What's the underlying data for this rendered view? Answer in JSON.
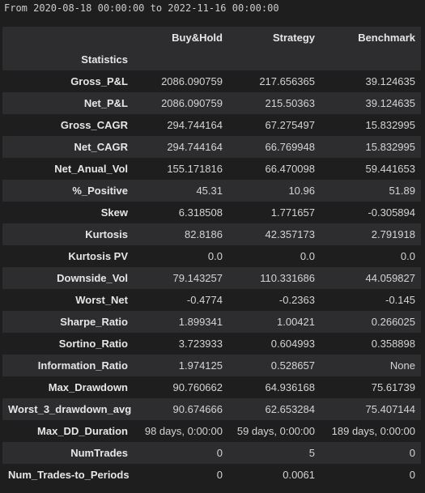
{
  "range_text": "From 2020-08-18 00:00:00 to 2022-11-16 00:00:00",
  "columns": [
    "Buy&Hold",
    "Strategy",
    "Benchmark"
  ],
  "index_header": "Statistics",
  "rows": [
    {
      "label": "Gross_P&L",
      "values": [
        "2086.090759",
        "217.656365",
        "39.124635"
      ]
    },
    {
      "label": "Net_P&L",
      "values": [
        "2086.090759",
        "215.50363",
        "39.124635"
      ]
    },
    {
      "label": "Gross_CAGR",
      "values": [
        "294.744164",
        "67.275497",
        "15.832995"
      ]
    },
    {
      "label": "Net_CAGR",
      "values": [
        "294.744164",
        "66.769948",
        "15.832995"
      ]
    },
    {
      "label": "Net_Anual_Vol",
      "values": [
        "155.171816",
        "66.470098",
        "59.441653"
      ]
    },
    {
      "label": "%_Positive",
      "values": [
        "45.31",
        "10.96",
        "51.89"
      ]
    },
    {
      "label": "Skew",
      "values": [
        "6.318508",
        "1.771657",
        "-0.305894"
      ]
    },
    {
      "label": "Kurtosis",
      "values": [
        "82.8186",
        "42.357173",
        "2.791918"
      ]
    },
    {
      "label": "Kurtosis PV",
      "values": [
        "0.0",
        "0.0",
        "0.0"
      ]
    },
    {
      "label": "Downside_Vol",
      "values": [
        "79.143257",
        "110.331686",
        "44.059827"
      ]
    },
    {
      "label": "Worst_Net",
      "values": [
        "-0.4774",
        "-0.2363",
        "-0.145"
      ]
    },
    {
      "label": "Sharpe_Ratio",
      "values": [
        "1.899341",
        "1.00421",
        "0.266025"
      ]
    },
    {
      "label": "Sortino_Ratio",
      "values": [
        "3.723933",
        "0.604993",
        "0.358898"
      ]
    },
    {
      "label": "Information_Ratio",
      "values": [
        "1.974125",
        "0.528657",
        "None"
      ]
    },
    {
      "label": "Max_Drawdown",
      "values": [
        "90.760662",
        "64.936168",
        "75.61739"
      ]
    },
    {
      "label": "Worst_3_drawdown_avg",
      "values": [
        "90.674666",
        "62.653284",
        "75.407144"
      ]
    },
    {
      "label": "Max_DD_Duration",
      "values": [
        "98 days, 0:00:00",
        "59 days, 0:00:00",
        "189 days, 0:00:00"
      ]
    },
    {
      "label": "NumTrades",
      "values": [
        "0",
        "5",
        "0"
      ]
    },
    {
      "label": "Num_Trades-to_Periods",
      "values": [
        "0",
        "0.0061",
        "0"
      ]
    }
  ]
}
